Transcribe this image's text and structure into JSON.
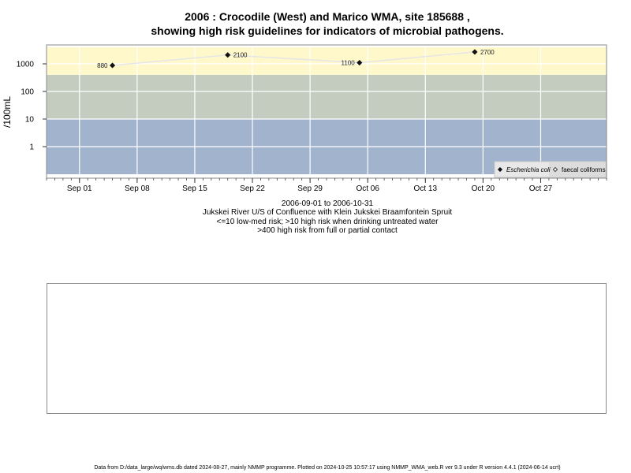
{
  "title_line1": "2006 : Crocodile (West) and Marico WMA, site 185688 ,",
  "title_line2": "showing high risk guidelines for indicators of microbial pathogens.",
  "subtitle_lines": [
    "2006-09-01 to 2006-10-31",
    "Jukskei River U/S of Confluence with Klein Jukskei Braamfontein Spruit",
    "<=10 low-med risk; >10 high risk when drinking untreated water",
    ">400 high risk from full or partial contact"
  ],
  "footer": "Data from D:/data_large/wq/wms.db dated 2024-08-27, mainly NMMP programme. Plotted on 2024-10-25 10:57:17 using NMMP_WMA_web.R ver 9.3 under R version 4.4.1 (2024-06-14 ucrt)",
  "chart_data": {
    "type": "scatter",
    "ylabel": "/100mL",
    "ylog": true,
    "xlim": [
      "2006-08-28",
      "2006-11-04"
    ],
    "x_ticks": [
      {
        "date": "2006-09-01",
        "label": "Sep 01"
      },
      {
        "date": "2006-09-08",
        "label": "Sep 08"
      },
      {
        "date": "2006-09-15",
        "label": "Sep 15"
      },
      {
        "date": "2006-09-22",
        "label": "Sep 22"
      },
      {
        "date": "2006-09-29",
        "label": "Sep 29"
      },
      {
        "date": "2006-10-06",
        "label": "Oct 06"
      },
      {
        "date": "2006-10-13",
        "label": "Oct 13"
      },
      {
        "date": "2006-10-20",
        "label": "Oct 20"
      },
      {
        "date": "2006-10-27",
        "label": "Oct 27"
      }
    ],
    "y_ticks": [
      1,
      10,
      100,
      1000
    ],
    "y_tick_labels": [
      "1",
      "10",
      "100",
      "1000"
    ],
    "bands": [
      {
        "from": 0.1,
        "to": 10,
        "color": "#a2b4cd"
      },
      {
        "from": 10,
        "to": 400,
        "color": "#c4ccc0"
      },
      {
        "from": 400,
        "to": 4000,
        "color": "#fff8cb"
      }
    ],
    "grid": true,
    "legend_position": "bottom-right",
    "series": [
      {
        "name": "Escherichia coli",
        "marker": "filled-diamond",
        "color": "#222222",
        "points": [
          {
            "date": "2006-09-05",
            "value": 880,
            "label": "880"
          },
          {
            "date": "2006-09-19",
            "value": 2100,
            "label": "2100"
          },
          {
            "date": "2006-10-05",
            "value": 1100,
            "label": "1100"
          },
          {
            "date": "2006-10-19",
            "value": 2700,
            "label": "2700"
          }
        ]
      },
      {
        "name": "faecal coliforms",
        "marker": "open-diamond",
        "color": "#555555",
        "points": []
      }
    ]
  }
}
